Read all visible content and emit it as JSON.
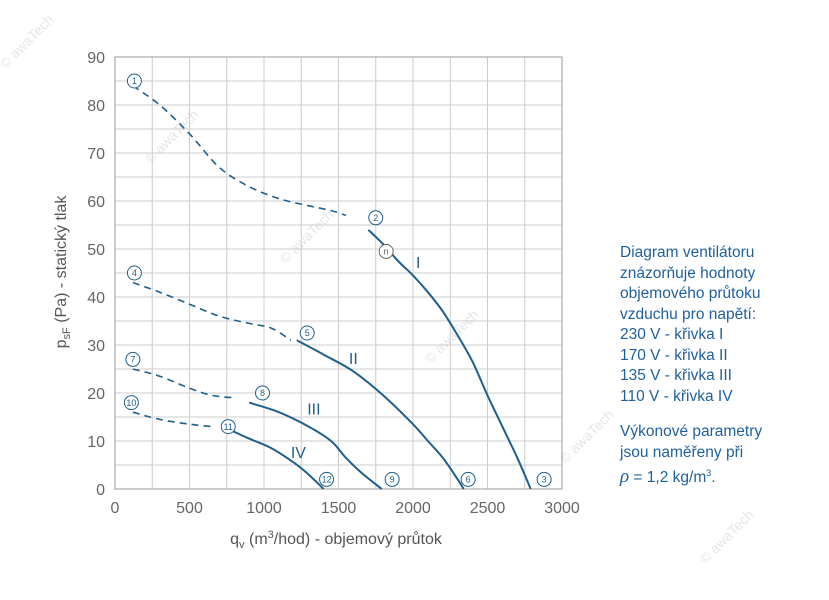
{
  "chart_data": {
    "type": "line",
    "xlabel": {
      "base": "q",
      "sub": "v",
      "pre": " (m",
      "sup": "3",
      "post": "/hod) - objemový průtok"
    },
    "ylabel": {
      "base": "p",
      "sub": "sF",
      "post": " (Pa) - statický tlak"
    },
    "xlim": [
      0,
      3000
    ],
    "ylim": [
      0,
      90
    ],
    "x_ticks": [
      0,
      500,
      1000,
      1500,
      2000,
      2500,
      3000
    ],
    "y_ticks": [
      0,
      10,
      20,
      30,
      40,
      50,
      60,
      70,
      80,
      90
    ],
    "grid": true,
    "series": [
      {
        "name": "I",
        "dashed": [
          [
            120,
            84
          ],
          [
            300,
            80
          ],
          [
            500,
            74
          ],
          [
            700,
            67
          ],
          [
            900,
            63
          ],
          [
            1100,
            60.5
          ],
          [
            1300,
            59
          ],
          [
            1450,
            58
          ],
          [
            1550,
            57
          ]
        ],
        "solid": [
          [
            1700,
            54
          ],
          [
            1800,
            51
          ],
          [
            1900,
            47.5
          ],
          [
            2000,
            44.5
          ],
          [
            2100,
            41
          ],
          [
            2200,
            37
          ],
          [
            2300,
            32
          ],
          [
            2400,
            26.5
          ],
          [
            2500,
            19.5
          ],
          [
            2600,
            13
          ],
          [
            2700,
            6.5
          ],
          [
            2790,
            0
          ]
        ]
      },
      {
        "name": "II",
        "dashed": [
          [
            120,
            43
          ],
          [
            300,
            41
          ],
          [
            500,
            38.5
          ],
          [
            700,
            36
          ],
          [
            900,
            34.5
          ],
          [
            1050,
            33.5
          ],
          [
            1180,
            31
          ]
        ],
        "solid": [
          [
            1220,
            31
          ],
          [
            1400,
            28
          ],
          [
            1600,
            24.5
          ],
          [
            1800,
            19.5
          ],
          [
            2000,
            13.5
          ],
          [
            2100,
            10
          ],
          [
            2200,
            6.5
          ],
          [
            2300,
            2
          ],
          [
            2340,
            0
          ]
        ]
      },
      {
        "name": "III",
        "dashed": [
          [
            120,
            25
          ],
          [
            300,
            23.5
          ],
          [
            500,
            21
          ],
          [
            650,
            19.5
          ],
          [
            800,
            19
          ]
        ],
        "solid": [
          [
            900,
            18
          ],
          [
            1100,
            16
          ],
          [
            1300,
            13
          ],
          [
            1450,
            10
          ],
          [
            1550,
            6.5
          ],
          [
            1650,
            3.5
          ],
          [
            1790,
            0
          ]
        ]
      },
      {
        "name": "IV",
        "dashed": [
          [
            120,
            16
          ],
          [
            300,
            14.5
          ],
          [
            500,
            13.5
          ],
          [
            650,
            13
          ]
        ],
        "solid": [
          [
            760,
            12.5
          ],
          [
            900,
            10.5
          ],
          [
            1050,
            8.5
          ],
          [
            1200,
            5.5
          ],
          [
            1300,
            3
          ],
          [
            1400,
            0
          ]
        ]
      }
    ],
    "curve_labels": [
      {
        "text": "I",
        "x": 2020,
        "y": 46
      },
      {
        "text": "II",
        "x": 1570,
        "y": 26
      },
      {
        "text": "III",
        "x": 1290,
        "y": 15.5
      },
      {
        "text": "IV",
        "x": 1180,
        "y": 6.5
      }
    ],
    "points": [
      {
        "n": "1",
        "x": 130,
        "y": 85,
        "style": "blue"
      },
      {
        "n": "2",
        "x": 1750,
        "y": 56.5,
        "style": "blue"
      },
      {
        "n": "3",
        "x": 2880,
        "y": 2,
        "style": "blue"
      },
      {
        "n": "4",
        "x": 130,
        "y": 45,
        "style": "blue"
      },
      {
        "n": "5",
        "x": 1290,
        "y": 32.5,
        "style": "blue"
      },
      {
        "n": "6",
        "x": 2370,
        "y": 2,
        "style": "blue"
      },
      {
        "n": "7",
        "x": 120,
        "y": 27,
        "style": "blue"
      },
      {
        "n": "8",
        "x": 990,
        "y": 20,
        "style": "blue"
      },
      {
        "n": "9",
        "x": 1860,
        "y": 2,
        "style": "blue"
      },
      {
        "n": "10",
        "x": 110,
        "y": 18,
        "style": "blue"
      },
      {
        "n": "11",
        "x": 760,
        "y": 13,
        "style": "blue"
      },
      {
        "n": "12",
        "x": 1420,
        "y": 2,
        "style": "blue"
      },
      {
        "n": "n",
        "x": 1820,
        "y": 49.5,
        "style": "grey"
      }
    ],
    "colors": {
      "curve": "#1f5f8b",
      "grid": "#cccccc",
      "frame": "#999999",
      "label": "#1f5f9e"
    }
  },
  "description": {
    "lines": [
      "Diagram ventilátoru",
      "znázorňuje hodnoty",
      "objemového průtoku",
      "vzduchu pro napětí:",
      "230 V - křivka I",
      "170 V - křivka II",
      "135 V - křivka III",
      "110 V - křivka IV"
    ],
    "note_lines": [
      "Výkonové parametry",
      "jsou naměřeny při"
    ],
    "rho_symbol": "ρ",
    "rho_value": " = 1,2 kg/m",
    "rho_sup": "3",
    "rho_end": "."
  },
  "watermark": "© awaTech"
}
